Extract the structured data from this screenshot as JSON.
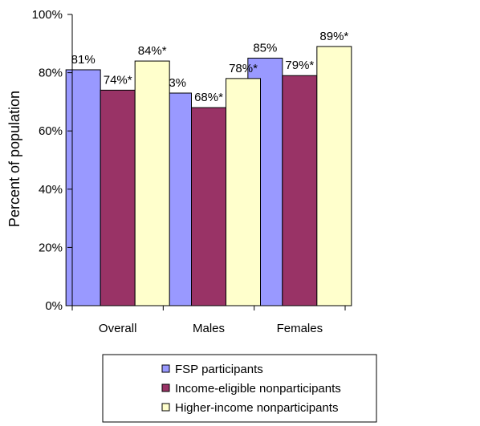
{
  "chart_data": {
    "type": "bar",
    "categories": [
      "Overall",
      "Males",
      "Females"
    ],
    "ylabel": "Percent of population",
    "ylim": [
      0,
      100
    ],
    "yticks": [
      "0%",
      "20%",
      "40%",
      "60%",
      "80%",
      "100%"
    ],
    "grid": false,
    "legend_position": "bottom",
    "series": [
      {
        "name": "FSP participants",
        "color": "#9999ff",
        "values": [
          81,
          73,
          85
        ],
        "labels": [
          "81%",
          "73%",
          "85%"
        ]
      },
      {
        "name": "Income-eligible nonparticipants",
        "color": "#993366",
        "values": [
          74,
          68,
          79
        ],
        "labels": [
          "74%*",
          "68%*",
          "79%*"
        ]
      },
      {
        "name": "Higher-income nonparticipants",
        "color": "#ffffcc",
        "values": [
          84,
          78,
          89
        ],
        "labels": [
          "84%*",
          "78%*",
          "89%*"
        ]
      }
    ]
  }
}
